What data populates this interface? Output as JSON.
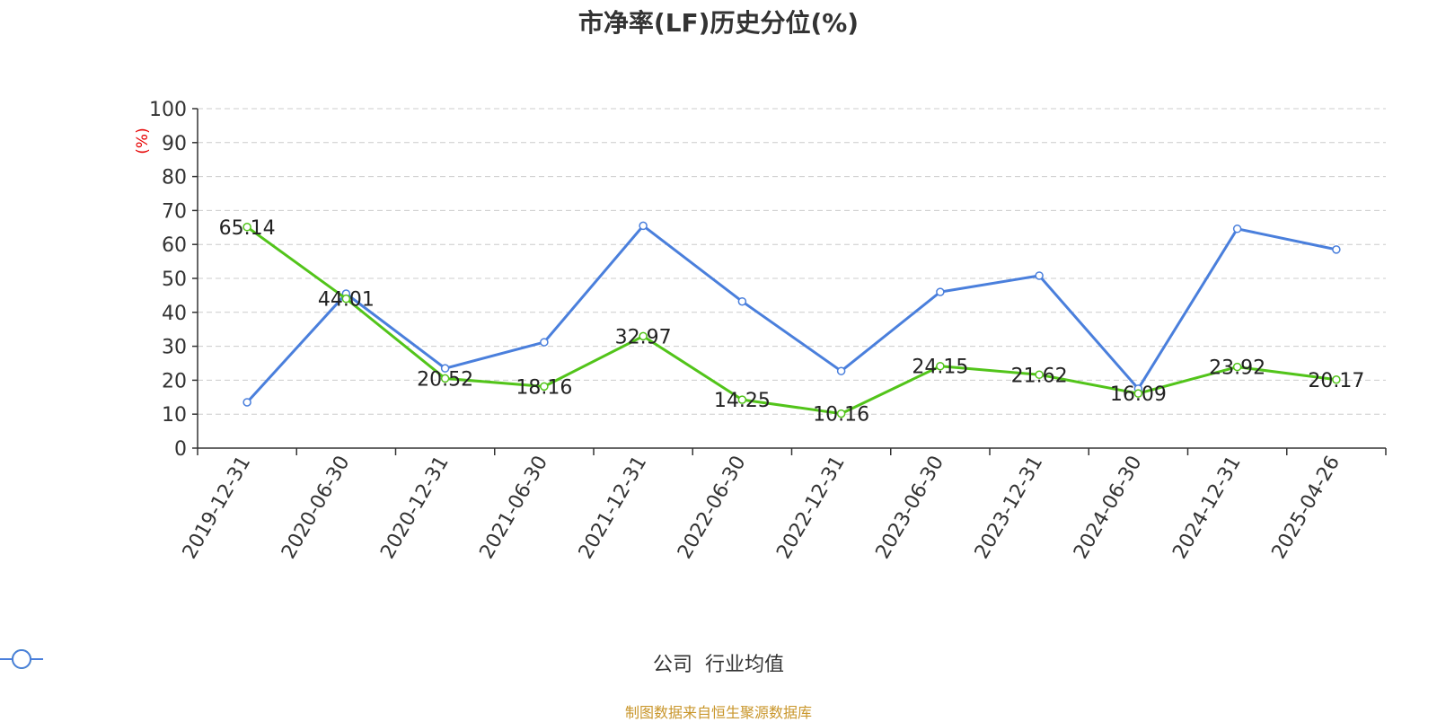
{
  "chart_data": {
    "type": "line",
    "title": "市净率(LF)历史分位(%)",
    "ylabel": "(%)",
    "xlabel": "",
    "ylim": [
      0,
      100
    ],
    "yticks": [
      0,
      10,
      20,
      30,
      40,
      50,
      60,
      70,
      80,
      90,
      100
    ],
    "categories": [
      "2019-12-31",
      "2020-06-30",
      "2020-12-31",
      "2021-06-30",
      "2021-12-31",
      "2022-06-30",
      "2022-12-31",
      "2023-06-30",
      "2023-12-31",
      "2024-06-30",
      "2024-12-31",
      "2025-04-26"
    ],
    "series": [
      {
        "name": "公司",
        "color": "#52c41a",
        "values": [
          65.14,
          44.01,
          20.52,
          18.16,
          32.97,
          14.25,
          10.16,
          24.15,
          21.62,
          16.09,
          23.92,
          20.17
        ],
        "labels": [
          "65.14",
          "44.01",
          "20.52",
          "18.16",
          "32.97",
          "14.25",
          "10.16",
          "24.15",
          "21.62",
          "16.09",
          "23.92",
          "20.17"
        ]
      },
      {
        "name": "行业均值",
        "color": "#4a7fdc",
        "values": [
          13.5,
          45.5,
          23.5,
          31.2,
          65.5,
          43.2,
          22.7,
          46.0,
          50.8,
          17.5,
          64.6,
          58.5
        ]
      }
    ],
    "grid": true,
    "legend_position": "bottom"
  },
  "footer": {
    "source": "制图数据来自恒生聚源数据库"
  }
}
